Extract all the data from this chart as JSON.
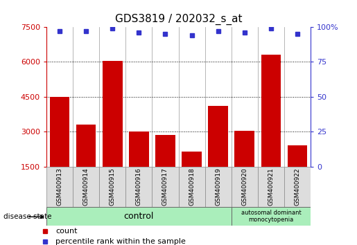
{
  "title": "GDS3819 / 202032_s_at",
  "samples": [
    "GSM400913",
    "GSM400914",
    "GSM400915",
    "GSM400916",
    "GSM400917",
    "GSM400918",
    "GSM400919",
    "GSM400920",
    "GSM400921",
    "GSM400922"
  ],
  "counts": [
    4500,
    3300,
    6050,
    3000,
    2850,
    2150,
    4100,
    3050,
    6300,
    2400
  ],
  "percentile_ranks": [
    97,
    97,
    99,
    96,
    95,
    94,
    97,
    96,
    99,
    95
  ],
  "bar_color": "#cc0000",
  "dot_color": "#3333cc",
  "ylim_left": [
    1500,
    7500
  ],
  "yticks_left": [
    1500,
    3000,
    4500,
    6000,
    7500
  ],
  "ylim_right": [
    0,
    100
  ],
  "yticks_right": [
    0,
    25,
    50,
    75,
    100
  ],
  "ytick_labels_right": [
    "0",
    "25",
    "50",
    "75",
    "100%"
  ],
  "grid_values": [
    3000,
    4500,
    6000
  ],
  "n_control": 7,
  "n_disease": 3,
  "control_label": "control",
  "disease_label": "autosomal dominant\nmonocytopenia",
  "group_box_color": "#aaeebb",
  "col_header_color": "#dddddd",
  "xlabel_color": "#cc0000",
  "ylabel_right_color": "#3333cc",
  "title_fontsize": 11,
  "legend_count_color": "#cc0000",
  "legend_pct_color": "#3333cc",
  "disease_state_fontsize": 8
}
